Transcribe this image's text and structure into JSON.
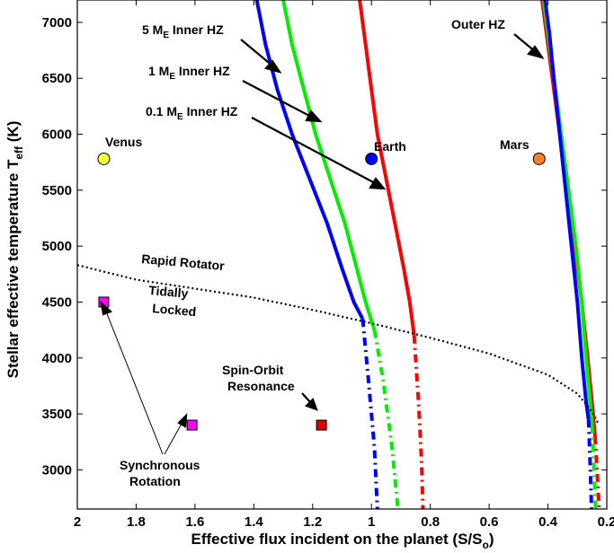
{
  "chart_data": {
    "type": "line",
    "title": "",
    "xlabel": "Effective flux incident on the planet (S/S",
    "xlabel_sub": "o",
    "xlabel_end": ")",
    "ylabel": "Stellar effective temperature T",
    "ylabel_sub": "eff",
    "ylabel_end": " (K)",
    "xlim": [
      2.0,
      0.2
    ],
    "ylim": [
      2650,
      7200
    ],
    "x_reversed": true,
    "xticks": [
      2,
      1.8,
      1.6,
      1.4,
      1.2,
      1,
      0.8,
      0.6,
      0.4,
      0.2
    ],
    "xtick_labels": [
      "2",
      "1.8",
      "1.6",
      "1.4",
      "1.2",
      "1",
      "0.8",
      "0.6",
      "0.4",
      "0.2"
    ],
    "yticks": [
      3000,
      3500,
      4000,
      4500,
      5000,
      5500,
      6000,
      6500,
      7000
    ],
    "ytick_labels": [
      "3000",
      "3500",
      "4000",
      "4500",
      "5000",
      "5500",
      "6000",
      "6500",
      "7000"
    ],
    "series": [
      {
        "name": "0.1 M_E Inner HZ",
        "color": "#ff0000",
        "solid": {
          "x": [
            1.04,
            1.02,
            1.0,
            0.98,
            0.95,
            0.92,
            0.89,
            0.87,
            0.855
          ],
          "y": [
            7200,
            6800,
            6400,
            6000,
            5600,
            5200,
            4800,
            4500,
            4200
          ]
        },
        "dashed": {
          "x": [
            0.855,
            0.84,
            0.83,
            0.825
          ],
          "y": [
            4200,
            3600,
            3100,
            2650
          ]
        }
      },
      {
        "name": "1 M_E Inner HZ",
        "color": "#00ee00",
        "solid": {
          "x": [
            1.3,
            1.27,
            1.23,
            1.19,
            1.14,
            1.09,
            1.05,
            1.02,
            0.99
          ],
          "y": [
            7200,
            6800,
            6400,
            6000,
            5600,
            5200,
            4800,
            4500,
            4250
          ]
        },
        "dashed": {
          "x": [
            0.99,
            0.96,
            0.93,
            0.91
          ],
          "y": [
            4250,
            3800,
            3200,
            2650
          ]
        }
      },
      {
        "name": "5 M_E Inner HZ",
        "color": "#0000ff",
        "solid": {
          "x": [
            1.39,
            1.36,
            1.32,
            1.27,
            1.21,
            1.15,
            1.1,
            1.06,
            1.03
          ],
          "y": [
            7200,
            6800,
            6400,
            6000,
            5600,
            5200,
            4800,
            4500,
            4350
          ]
        },
        "dashed": {
          "x": [
            1.03,
            1.01,
            0.99,
            0.98
          ],
          "y": [
            4350,
            3800,
            3200,
            2650
          ]
        }
      },
      {
        "name": "Outer HZ (red)",
        "color": "#ff0000",
        "solid": {
          "x": [
            0.42,
            0.405,
            0.385,
            0.36,
            0.335,
            0.31,
            0.285,
            0.265,
            0.25,
            0.245,
            0.24
          ],
          "y": [
            7200,
            6900,
            6500,
            6000,
            5500,
            5000,
            4500,
            4000,
            3600,
            3450,
            3300
          ]
        },
        "dashed": {
          "x": [
            0.24,
            0.232,
            0.226
          ],
          "y": [
            3300,
            2950,
            2650
          ]
        }
      },
      {
        "name": "Outer HZ (green)",
        "color": "#00ee00",
        "solid": {
          "x": [
            0.415,
            0.4,
            0.38,
            0.355,
            0.33,
            0.305,
            0.285,
            0.27,
            0.255,
            0.25
          ],
          "y": [
            7200,
            6900,
            6500,
            6000,
            5500,
            5000,
            4500,
            4000,
            3550,
            3400
          ]
        },
        "dashed": {
          "x": [
            0.25,
            0.243,
            0.238
          ],
          "y": [
            3400,
            3000,
            2650
          ]
        }
      },
      {
        "name": "Outer HZ (blue)",
        "color": "#0000ff",
        "solid": {
          "x": [
            0.41,
            0.395,
            0.38,
            0.36,
            0.34,
            0.32,
            0.3,
            0.285,
            0.27,
            0.262
          ],
          "y": [
            7200,
            6900,
            6500,
            6000,
            5500,
            5000,
            4500,
            4000,
            3600,
            3450
          ]
        },
        "dashed": {
          "x": [
            0.262,
            0.256,
            0.252
          ],
          "y": [
            3450,
            3000,
            2650
          ]
        }
      }
    ],
    "rotator_line": {
      "x": [
        2.0,
        1.8,
        1.6,
        1.4,
        1.2,
        1.0,
        0.8,
        0.6,
        0.4,
        0.3,
        0.25,
        0.23
      ],
      "y": [
        4830,
        4700,
        4620,
        4540,
        4430,
        4310,
        4180,
        4040,
        3850,
        3680,
        3520,
        3420
      ]
    },
    "planets": [
      {
        "name": "Venus",
        "x": 1.91,
        "y": 5780,
        "color": "#ffff44"
      },
      {
        "name": "Earth",
        "x": 1.0,
        "y": 5780,
        "color": "#0000ff"
      },
      {
        "name": "Mars",
        "x": 0.43,
        "y": 5780,
        "color": "#ff7f2a"
      }
    ],
    "squares": [
      {
        "name": "magenta-1",
        "x": 1.91,
        "y": 4500,
        "color": "#ff00ff"
      },
      {
        "name": "magenta-2",
        "x": 1.61,
        "y": 3400,
        "color": "#ff00ff"
      },
      {
        "name": "red-square",
        "x": 1.17,
        "y": 3400,
        "color": "#dd0000"
      }
    ],
    "annotations": {
      "five_me_label": "5 M",
      "five_me_sub": "E",
      "five_me_rest": " Inner HZ",
      "one_me_label": "1 M",
      "one_me_sub": "E",
      "one_me_rest": " Inner HZ",
      "tenth_me_label": "0.1 M",
      "tenth_me_sub": "E",
      "tenth_me_rest": " Inner HZ",
      "outer_hz": "Outer HZ",
      "rapid_rotator": "Rapid Rotator",
      "tidally_line1": "Tidally",
      "tidally_line2": "Locked",
      "spin_line1": "Spin-Orbit",
      "spin_line2": "Resonance",
      "sync_line1": "Synchronous",
      "sync_line2": "Rotation"
    }
  }
}
